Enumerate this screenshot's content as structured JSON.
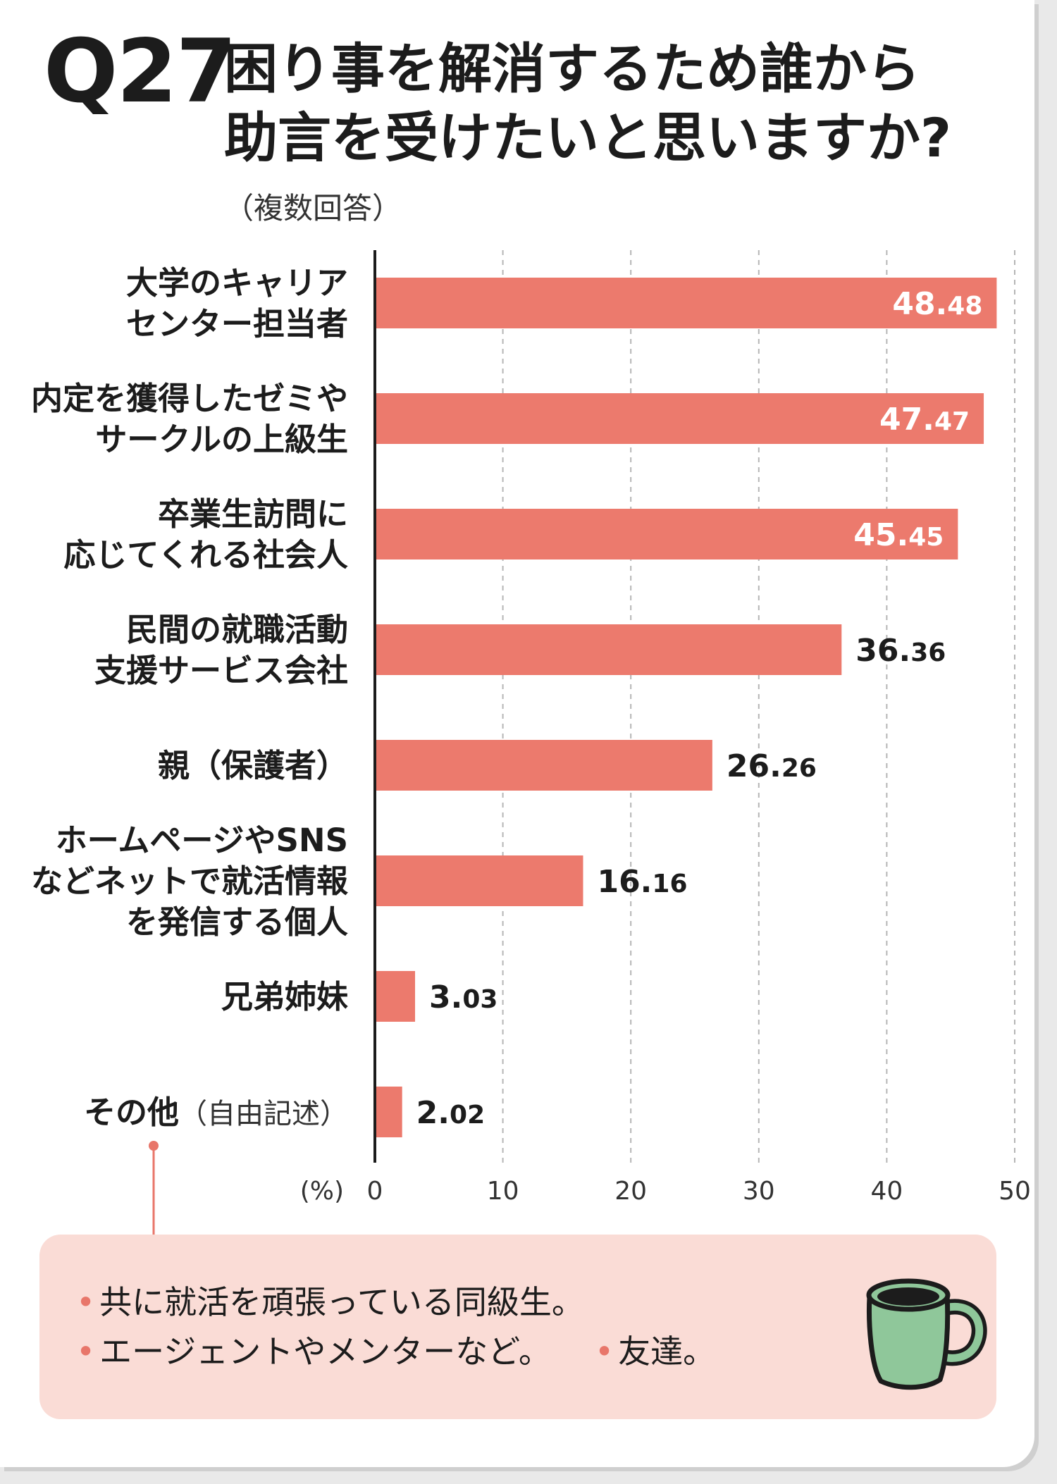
{
  "header": {
    "question_no": "Q27",
    "title_line1": "困り事を解消するため誰から",
    "title_line2": "助言を受けたいと思いますか?",
    "subtitle": "（複数回答）"
  },
  "chart_data": {
    "type": "bar",
    "orientation": "horizontal",
    "unit_label": "(%)",
    "xlim": [
      0,
      50
    ],
    "ticks": [
      "0",
      "10",
      "20",
      "30",
      "40",
      "50"
    ],
    "grid": true,
    "categories": [
      {
        "lines": [
          "大学のキャリア",
          "センター担当者"
        ],
        "value": 48.48,
        "label_main": "48.",
        "label_small": "48",
        "label_inside": true
      },
      {
        "lines": [
          "内定を獲得したゼミや",
          "サークルの上級生"
        ],
        "value": 47.47,
        "label_main": "47.",
        "label_small": "47",
        "label_inside": true
      },
      {
        "lines": [
          "卒業生訪問に",
          "応じてくれる社会人"
        ],
        "value": 45.45,
        "label_main": "45.",
        "label_small": "45",
        "label_inside": true
      },
      {
        "lines": [
          "民間の就職活動",
          "支援サービス会社"
        ],
        "value": 36.36,
        "label_main": "36.",
        "label_small": "36",
        "label_inside": false
      },
      {
        "lines": [
          "親（保護者）"
        ],
        "value": 26.26,
        "label_main": "26.",
        "label_small": "26",
        "label_inside": false
      },
      {
        "lines": [
          "ホームページやSNS",
          "などネットで就活情報",
          "を発信する個人"
        ],
        "value": 16.16,
        "label_main": "16.",
        "label_small": "16",
        "label_inside": false
      },
      {
        "lines": [
          "兄弟姉妹"
        ],
        "value": 3.03,
        "label_main": "3.",
        "label_small": "03",
        "label_inside": false
      },
      {
        "lines": [
          "その他"
        ],
        "note": "（自由記述）",
        "value": 2.02,
        "label_main": "2.",
        "label_small": "02",
        "label_inside": false
      }
    ],
    "colors": {
      "bar": "#ec7a6d",
      "inside_label": "#ffffff",
      "outside_label": "#1c1c1c",
      "axis": "#1c1c1c",
      "grid": "#b5b5b5",
      "connector": "#e8766a"
    }
  },
  "notes": {
    "items": [
      "共に就活を頑張っている同級生。",
      "エージェントやメンターなど。",
      "友達。"
    ],
    "bullet": "•",
    "box_color": "#fadcd6",
    "mug_color": "#8fc79a"
  }
}
